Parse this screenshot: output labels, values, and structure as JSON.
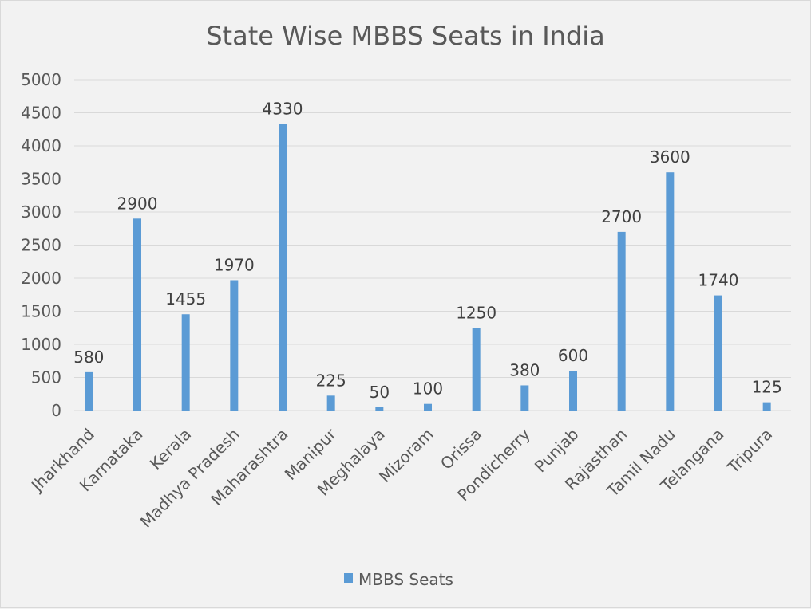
{
  "chart_data": {
    "type": "bar",
    "title": "State Wise MBBS Seats in India",
    "xlabel": "",
    "ylabel": "",
    "ylim": [
      0,
      5000
    ],
    "yticks": [
      0,
      500,
      1000,
      1500,
      2000,
      2500,
      3000,
      3500,
      4000,
      4500,
      5000
    ],
    "grid": true,
    "legend_position": "bottom",
    "categories": [
      "Jharkhand",
      "Karnataka",
      "Kerala",
      "Madhya Pradesh",
      "Maharashtra",
      "Manipur",
      "Meghalaya",
      "Mizoram",
      "Orissa",
      "Pondicherry",
      "Punjab",
      "Rajasthan",
      "Tamil Nadu",
      "Telangana",
      "Tripura"
    ],
    "series": [
      {
        "name": "MBBS Seats",
        "color": "#5b9bd5",
        "values": [
          580,
          2900,
          1455,
          1970,
          4330,
          225,
          50,
          100,
          1250,
          380,
          600,
          2700,
          3600,
          1740,
          125
        ]
      }
    ]
  }
}
